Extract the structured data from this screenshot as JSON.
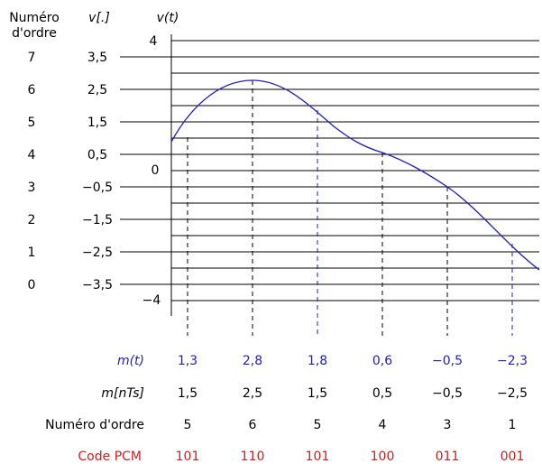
{
  "headers": {
    "order_col_line1": "Numéro",
    "order_col_line2": "d'ordre",
    "value_col": "v[.]",
    "axis_title": "v(t)"
  },
  "levels": [
    {
      "order": "7",
      "value": "3,5"
    },
    {
      "order": "6",
      "value": "2,5"
    },
    {
      "order": "5",
      "value": "1,5"
    },
    {
      "order": "4",
      "value": "0,5"
    },
    {
      "order": "3",
      "value": "−0,5"
    },
    {
      "order": "2",
      "value": "−1,5"
    },
    {
      "order": "1",
      "value": "−2,5"
    },
    {
      "order": "0",
      "value": "−3,5"
    }
  ],
  "axis": {
    "top_label": "4",
    "zero_label": "0",
    "bottom_label": "−4"
  },
  "samples": {
    "m": [
      "1,3",
      "2,8",
      "1,8",
      "0,6",
      "−0,5",
      "−2,3"
    ],
    "quantized": [
      "1,5",
      "2,5",
      "1,5",
      "0,5",
      "−0,5",
      "−2,5"
    ],
    "order": [
      "5",
      "6",
      "5",
      "4",
      "3",
      "1"
    ],
    "pcm": [
      "101",
      "110",
      "101",
      "100",
      "011",
      "001"
    ],
    "guide_colors": [
      "#000000",
      "#000000",
      "#1f1fbf",
      "#000000",
      "#000000",
      "#1f1fbf"
    ]
  },
  "row_labels": {
    "m": "m(t)",
    "quantized": "m[nTs]",
    "order": "Numéro d'ordre",
    "pcm": "Code PCM"
  },
  "colors": {
    "blue": "#1f1fbf",
    "red": "#cc1f1f",
    "black": "#000000"
  }
}
